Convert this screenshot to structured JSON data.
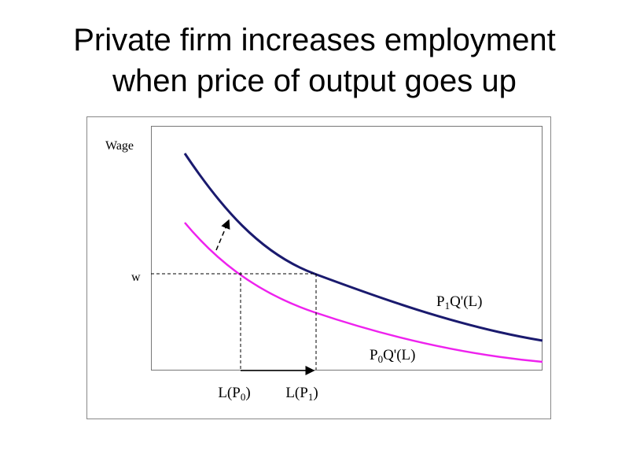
{
  "title": {
    "lines": [
      "Private firm increases employment",
      "when price of output goes up"
    ]
  },
  "diagram": {
    "y_axis_label": "Wage",
    "wage_label": "w",
    "x_labels": [
      {
        "text": "L(P",
        "sub": "0",
        "tail": ")"
      },
      {
        "text": "L(P",
        "sub": "1",
        "tail": ")"
      }
    ],
    "curve_labels": [
      {
        "text": "P",
        "sub": "1",
        "tail": "Q'(L)"
      },
      {
        "text": "P",
        "sub": "0",
        "tail": "Q'(L)"
      }
    ]
  }
}
